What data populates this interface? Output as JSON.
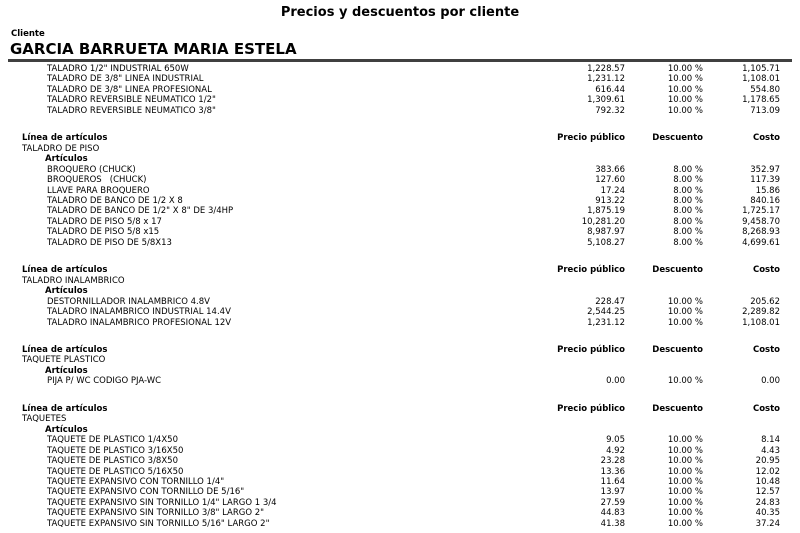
{
  "title": "Precios y descuentos por cliente",
  "client": {
    "label": "Cliente",
    "name": "GARCIA BARRUETA MARIA ESTELA"
  },
  "labels": {
    "line_of_articles": "Línea de artículos",
    "articles": "Artículos"
  },
  "columns": {
    "price": "Precio público",
    "discount": "Descuento",
    "cost": "Costo"
  },
  "continuation_items": [
    {
      "desc": "TALADRO 1/2\" INDUSTRIAL 650W",
      "price": "1,228.57",
      "discount": "10.00 %",
      "cost": "1,105.71"
    },
    {
      "desc": "TALADRO DE 3/8\" LINEA INDUSTRIAL",
      "price": "1,231.12",
      "discount": "10.00 %",
      "cost": "1,108.01"
    },
    {
      "desc": "TALADRO DE 3/8\" LINEA PROFESIONAL",
      "price": "616.44",
      "discount": "10.00 %",
      "cost": "554.80"
    },
    {
      "desc": "TALADRO REVERSIBLE NEUMATICO 1/2\"",
      "price": "1,309.61",
      "discount": "10.00 %",
      "cost": "1,178.65"
    },
    {
      "desc": "TALADRO REVERSIBLE NEUMATICO 3/8\"",
      "price": "792.32",
      "discount": "10.00 %",
      "cost": "713.09"
    }
  ],
  "sections": [
    {
      "name": "TALADRO DE PISO",
      "items": [
        {
          "desc": "BROQUERO (CHUCK)",
          "price": "383.66",
          "discount": "8.00 %",
          "cost": "352.97"
        },
        {
          "desc": "BROQUEROS   (CHUCK)",
          "price": "127.60",
          "discount": "8.00 %",
          "cost": "117.39"
        },
        {
          "desc": "LLAVE PARA BROQUERO",
          "price": "17.24",
          "discount": "8.00 %",
          "cost": "15.86"
        },
        {
          "desc": "TALADRO DE BANCO DE 1/2 X 8",
          "price": "913.22",
          "discount": "8.00 %",
          "cost": "840.16"
        },
        {
          "desc": "TALADRO DE BANCO DE 1/2\" X 8\" DE 3/4HP",
          "price": "1,875.19",
          "discount": "8.00 %",
          "cost": "1,725.17"
        },
        {
          "desc": "TALADRO DE PISO 5/8 x 17",
          "price": "10,281.20",
          "discount": "8.00 %",
          "cost": "9,458.70"
        },
        {
          "desc": "TALADRO DE PISO 5/8 x15",
          "price": "8,987.97",
          "discount": "8.00 %",
          "cost": "8,268.93"
        },
        {
          "desc": "TALADRO DE PISO DE 5/8X13",
          "price": "5,108.27",
          "discount": "8.00 %",
          "cost": "4,699.61"
        }
      ]
    },
    {
      "name": "TALADRO INALAMBRICO",
      "items": [
        {
          "desc": "DESTORNILLADOR INALAMBRICO 4.8V",
          "price": "228.47",
          "discount": "10.00 %",
          "cost": "205.62"
        },
        {
          "desc": "TALADRO INALAMBRICO INDUSTRIAL 14.4V",
          "price": "2,544.25",
          "discount": "10.00 %",
          "cost": "2,289.82"
        },
        {
          "desc": "TALADRO INALAMBRICO PROFESIONAL 12V",
          "price": "1,231.12",
          "discount": "10.00 %",
          "cost": "1,108.01"
        }
      ]
    },
    {
      "name": "TAQUETE PLASTICO",
      "items": [
        {
          "desc": "PIJA P/ WC CODIGO PJA-WC",
          "price": "0.00",
          "discount": "10.00 %",
          "cost": "0.00"
        }
      ]
    },
    {
      "name": "TAQUETES",
      "items": [
        {
          "desc": "TAQUETE DE PLASTICO 1/4X50",
          "price": "9.05",
          "discount": "10.00 %",
          "cost": "8.14"
        },
        {
          "desc": "TAQUETE DE PLASTICO 3/16X50",
          "price": "4.92",
          "discount": "10.00 %",
          "cost": "4.43"
        },
        {
          "desc": "TAQUETE DE PLASTICO 3/8X50",
          "price": "23.28",
          "discount": "10.00 %",
          "cost": "20.95"
        },
        {
          "desc": "TAQUETE DE PLASTICO 5/16X50",
          "price": "13.36",
          "discount": "10.00 %",
          "cost": "12.02"
        },
        {
          "desc": "TAQUETE EXPANSIVO CON TORNILLO 1/4\"",
          "price": "11.64",
          "discount": "10.00 %",
          "cost": "10.48"
        },
        {
          "desc": "TAQUETE EXPANSIVO CON TORNILLO DE 5/16\"",
          "price": "13.97",
          "discount": "10.00 %",
          "cost": "12.57"
        },
        {
          "desc": "TAQUETE EXPANSIVO SIN TORNILLO 1/4\" LARGO 1 3/4",
          "price": "27.59",
          "discount": "10.00 %",
          "cost": "24.83"
        },
        {
          "desc": "TAQUETE EXPANSIVO SIN TORNILLO 3/8\" LARGO 2\"",
          "price": "44.83",
          "discount": "10.00 %",
          "cost": "40.35"
        },
        {
          "desc": "TAQUETE EXPANSIVO SIN TORNILLO 5/16\" LARGO 2\"",
          "price": "41.38",
          "discount": "10.00 %",
          "cost": "37.24"
        }
      ]
    }
  ]
}
